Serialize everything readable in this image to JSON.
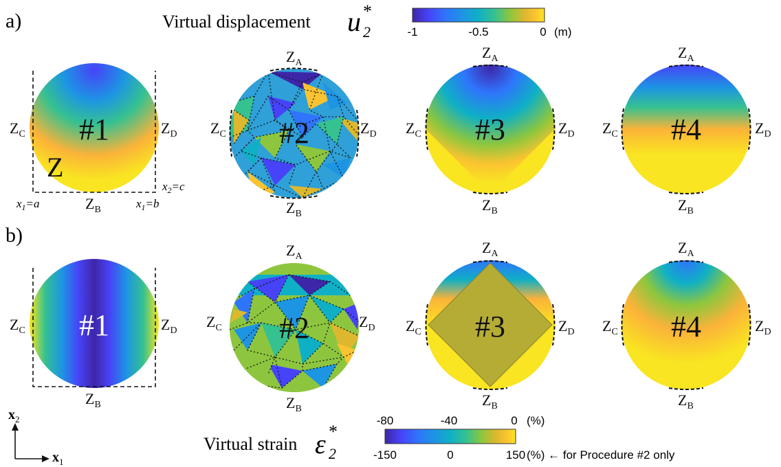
{
  "panel_labels": {
    "a": "a)",
    "b": "b)"
  },
  "displacement_title": {
    "text": "Virtual displacement",
    "symbol": "u",
    "sub": "2",
    "sup": "*"
  },
  "strain_title": {
    "text": "Virtual strain",
    "symbol": "ε",
    "sub": "2",
    "sup": "*"
  },
  "displacement_colorbar": {
    "ticks": [
      "-1",
      "-0.5",
      "0"
    ],
    "unit": "(m)"
  },
  "strain_colorbar": {
    "top_ticks": [
      "-80",
      "-40",
      "0"
    ],
    "top_unit": "(%)",
    "bottom_ticks": [
      "-150",
      "0",
      "150"
    ],
    "bottom_unit": "(%) ← for Procedure #2 only"
  },
  "procedures": [
    "#1",
    "#2",
    "#3",
    "#4"
  ],
  "zone_labels": {
    "Z": "Z",
    "A": "A",
    "B": "B",
    "C": "C",
    "D": "D"
  },
  "region_label": "Z",
  "boundary_labels": {
    "x1a": {
      "var": "x",
      "sub": "1",
      "eq": "=a"
    },
    "x1b": {
      "var": "x",
      "sub": "1",
      "eq": "=b"
    },
    "x2c": {
      "var": "x",
      "sub": "2",
      "eq": "=c"
    }
  },
  "axes": {
    "x1": {
      "var": "x",
      "sub": "1"
    },
    "x2": {
      "var": "x",
      "sub": "2"
    }
  },
  "colors": {
    "parula": [
      "#3e26a8",
      "#4743f8",
      "#2f74fc",
      "#1d95e3",
      "#0fb0c5",
      "#35c190",
      "#8dc63e",
      "#ddb82e",
      "#fbc330",
      "#f9e521"
    ],
    "overlay": "#b5ac35"
  }
}
